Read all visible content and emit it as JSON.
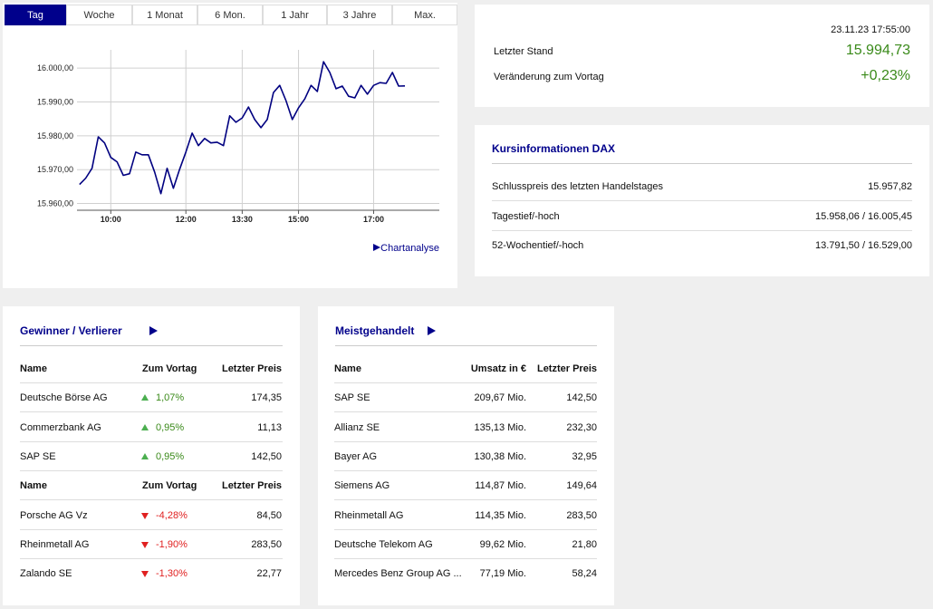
{
  "tabs": [
    {
      "label": "Tag",
      "active": true
    },
    {
      "label": "Woche",
      "active": false
    },
    {
      "label": "1 Monat",
      "active": false
    },
    {
      "label": "6 Mon.",
      "active": false
    },
    {
      "label": "1 Jahr",
      "active": false
    },
    {
      "label": "3 Jahre",
      "active": false
    },
    {
      "label": "Max.",
      "active": false
    }
  ],
  "chart_data": {
    "type": "line",
    "color": "#000080",
    "grid": true,
    "x": [
      550,
      560,
      570,
      580,
      590,
      600,
      610,
      620,
      630,
      640,
      650,
      660,
      670,
      680,
      690,
      700,
      710,
      720,
      730,
      740,
      750,
      760,
      770,
      780,
      790,
      800,
      810,
      820,
      830,
      840,
      850,
      860,
      870,
      880,
      890,
      900,
      910,
      920,
      930,
      940,
      950,
      960,
      970,
      980,
      990,
      1000,
      1010,
      1020,
      1030,
      1040,
      1050,
      1060,
      1070
    ],
    "values": [
      15965.6,
      15967.5,
      15970.4,
      15979.7,
      15977.9,
      15973.6,
      15972.3,
      15968.3,
      15968.8,
      15975.2,
      15974.4,
      15974.4,
      15969.3,
      15962.9,
      15970.4,
      15964.5,
      15970.1,
      15975.2,
      15980.8,
      15977.1,
      15979.2,
      15977.9,
      15978.1,
      15977.1,
      15985.9,
      15984.0,
      15985.3,
      15988.5,
      15984.8,
      15982.4,
      15984.8,
      15992.8,
      15994.9,
      15990.4,
      15984.8,
      15988.3,
      15990.9,
      15994.9,
      15993.1,
      16001.9,
      15998.7,
      15993.9,
      15994.7,
      15991.7,
      15991.2,
      15994.9,
      15992.3,
      15994.9,
      15995.7,
      15995.5,
      15998.7,
      15994.7,
      15994.73
    ],
    "xlim": [
      546,
      1125
    ],
    "xticks": [
      {
        "value": 600,
        "label": "10:00"
      },
      {
        "value": 720,
        "label": "12:00"
      },
      {
        "value": 810,
        "label": "13:30"
      },
      {
        "value": 900,
        "label": "15:00"
      },
      {
        "value": 1020,
        "label": "17:00"
      }
    ],
    "ylim": [
      15958,
      16005.4
    ],
    "yticks": [
      {
        "value": 15960,
        "label": "15.960,00"
      },
      {
        "value": 15970,
        "label": "15.970,00"
      },
      {
        "value": 15980,
        "label": "15.980,00"
      },
      {
        "value": 15990,
        "label": "15.990,00"
      },
      {
        "value": 16000,
        "label": "16.000,00"
      }
    ]
  },
  "chart_link": "Chartanalyse",
  "quote": {
    "timestamp": "23.11.23 17:55:00",
    "rows": [
      {
        "label": "Letzter Stand",
        "value": "15.994,73"
      },
      {
        "label": "Veränderung zum Vortag",
        "value": "+0,23%"
      }
    ]
  },
  "kursinfo": {
    "title": "Kursinformationen DAX",
    "rows": [
      [
        "Schlusspreis des letzten Handelstages",
        "15.957,82"
      ],
      [
        "Tagestief/-hoch",
        "15.958,06 / 16.005,45"
      ],
      [
        "52-Wochentief/-hoch",
        "13.791,50 / 16.529,00"
      ]
    ]
  },
  "movers": {
    "title": "Gewinner / Verlierer",
    "gainers": {
      "header": [
        "Name",
        "Zum Vortag",
        "Letzter Preis"
      ],
      "rows": [
        [
          "Deutsche Börse AG",
          "1,07%",
          "174,35"
        ],
        [
          "Commerzbank AG",
          "0,95%",
          "11,13"
        ],
        [
          "SAP SE",
          "0,95%",
          "142,50"
        ]
      ]
    },
    "losers": {
      "header": [
        "Name",
        "Zum Vortag",
        "Letzter Preis"
      ],
      "rows": [
        [
          "Porsche AG Vz",
          "-4,28%",
          "84,50"
        ],
        [
          "Rheinmetall AG",
          "-1,90%",
          "283,50"
        ],
        [
          "Zalando SE",
          "-1,30%",
          "22,77"
        ]
      ]
    }
  },
  "most_traded": {
    "title": "Meistgehandelt",
    "header": [
      "Name",
      "Umsatz in €",
      "Letzter Preis"
    ],
    "rows": [
      [
        "SAP SE",
        "209,67 Mio.",
        "142,50"
      ],
      [
        "Allianz SE",
        "135,13 Mio.",
        "232,30"
      ],
      [
        "Bayer AG",
        "130,38 Mio.",
        "32,95"
      ],
      [
        "Siemens AG",
        "114,87 Mio.",
        "149,64"
      ],
      [
        "Rheinmetall AG",
        "114,35 Mio.",
        "283,50"
      ],
      [
        "Deutsche Telekom AG",
        "99,62 Mio.",
        "21,80"
      ],
      [
        "Mercedes Benz Group AG ...",
        "77,19 Mio.",
        "58,24"
      ]
    ]
  }
}
